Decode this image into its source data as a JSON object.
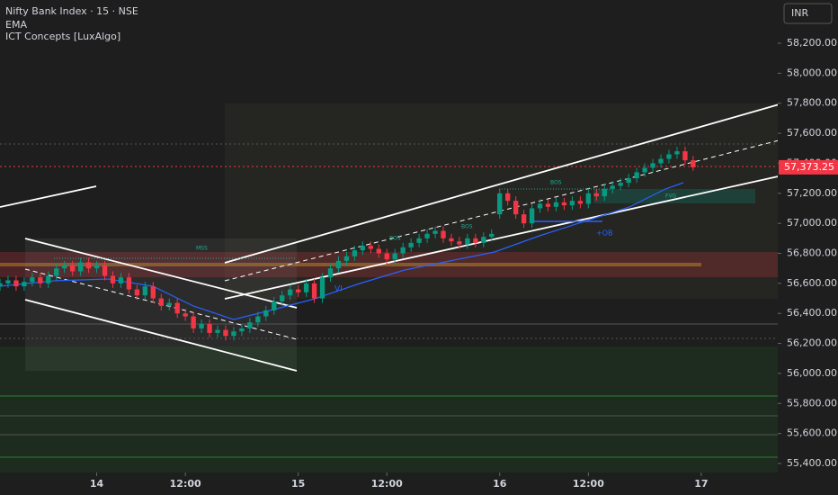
{
  "chart_data": {
    "type": "candlestick",
    "title": "Nifty Bank Index · 15 · NSE",
    "indicators": [
      "EMA",
      "ICT Concepts [LuxAlgo]"
    ],
    "currency": "INR",
    "up_color": "#089981",
    "down_color": "#f23645",
    "xlim": [
      0,
      96.5
    ],
    "ylim": [
      55340,
      58488
    ],
    "xticks": [
      {
        "value": 12,
        "label": "14"
      },
      {
        "value": 23,
        "label": "12:00"
      },
      {
        "value": 37,
        "label": "15"
      },
      {
        "value": 48,
        "label": "12:00"
      },
      {
        "value": 62,
        "label": "16"
      },
      {
        "value": 73,
        "label": "12:00"
      },
      {
        "value": 87,
        "label": "17"
      }
    ],
    "yticks": [
      {
        "value": 55400,
        "label": "55,400.00"
      },
      {
        "value": 55600,
        "label": "55,600.00"
      },
      {
        "value": 55800,
        "label": "55,800.00"
      },
      {
        "value": 56000,
        "label": "56,000.00"
      },
      {
        "value": 56200,
        "label": "56,200.00"
      },
      {
        "value": 56400,
        "label": "56,400.00"
      },
      {
        "value": 56600,
        "label": "56,600.00"
      },
      {
        "value": 56800,
        "label": "56,800.00"
      },
      {
        "value": 57000,
        "label": "57,000.00"
      },
      {
        "value": 57200,
        "label": "57,200.00"
      },
      {
        "value": 57400,
        "label": "57,400.00"
      },
      {
        "value": 57600,
        "label": "57,600.00"
      },
      {
        "value": 57800,
        "label": "57,800.00"
      },
      {
        "value": 58000,
        "label": "58,000.00"
      },
      {
        "value": 58200,
        "label": "58,200.00"
      }
    ],
    "last_price": {
      "value": 57373.25,
      "label": "57,373.25"
    },
    "annotations": [
      "MSS",
      "BOS",
      "BOS",
      "BOS",
      "+OB",
      "VI",
      "FVG"
    ],
    "candles": [
      [
        56580,
        56630,
        56550,
        56600
      ],
      [
        56600,
        56650,
        56570,
        56620
      ],
      [
        56620,
        56650,
        56550,
        56580
      ],
      [
        56580,
        56640,
        56550,
        56610
      ],
      [
        56610,
        56670,
        56580,
        56640
      ],
      [
        56640,
        56670,
        56570,
        56600
      ],
      [
        56600,
        56680,
        56570,
        56650
      ],
      [
        56650,
        56730,
        56620,
        56700
      ],
      [
        56700,
        56750,
        56670,
        56720
      ],
      [
        56720,
        56750,
        56650,
        56680
      ],
      [
        56680,
        56770,
        56650,
        56740
      ],
      [
        56740,
        56770,
        56670,
        56700
      ],
      [
        56700,
        56750,
        56670,
        56720
      ],
      [
        56720,
        56750,
        56620,
        56650
      ],
      [
        56650,
        56680,
        56570,
        56600
      ],
      [
        56600,
        56670,
        56570,
        56640
      ],
      [
        56640,
        56670,
        56530,
        56560
      ],
      [
        56560,
        56590,
        56490,
        56520
      ],
      [
        56520,
        56610,
        56490,
        56580
      ],
      [
        56580,
        56610,
        56470,
        56500
      ],
      [
        56500,
        56530,
        56420,
        56450
      ],
      [
        56450,
        56500,
        56420,
        56470
      ],
      [
        56470,
        56500,
        56370,
        56400
      ],
      [
        56400,
        56430,
        56350,
        56380
      ],
      [
        56380,
        56410,
        56270,
        56300
      ],
      [
        56300,
        56360,
        56270,
        56330
      ],
      [
        56330,
        56360,
        56240,
        56270
      ],
      [
        56270,
        56320,
        56240,
        56290
      ],
      [
        56290,
        56320,
        56220,
        56250
      ],
      [
        56250,
        56310,
        56220,
        56280
      ],
      [
        56280,
        56330,
        56250,
        56300
      ],
      [
        56300,
        56370,
        56270,
        56340
      ],
      [
        56340,
        56410,
        56310,
        56380
      ],
      [
        56380,
        56450,
        56350,
        56420
      ],
      [
        56420,
        56510,
        56390,
        56480
      ],
      [
        56480,
        56550,
        56450,
        56520
      ],
      [
        56520,
        56590,
        56490,
        56560
      ],
      [
        56560,
        56590,
        56510,
        56540
      ],
      [
        56540,
        56630,
        56510,
        56600
      ],
      [
        56600,
        56630,
        56470,
        56500
      ],
      [
        56500,
        56670,
        56470,
        56640
      ],
      [
        56640,
        56730,
        56610,
        56700
      ],
      [
        56700,
        56780,
        56670,
        56750
      ],
      [
        56750,
        56810,
        56720,
        56780
      ],
      [
        56780,
        56850,
        56750,
        56820
      ],
      [
        56820,
        56880,
        56790,
        56850
      ],
      [
        56850,
        56880,
        56800,
        56830
      ],
      [
        56830,
        56860,
        56770,
        56800
      ],
      [
        56800,
        56830,
        56730,
        56760
      ],
      [
        56760,
        56830,
        56730,
        56800
      ],
      [
        56800,
        56870,
        56770,
        56840
      ],
      [
        56840,
        56900,
        56810,
        56870
      ],
      [
        56870,
        56930,
        56840,
        56900
      ],
      [
        56900,
        56960,
        56870,
        56930
      ],
      [
        56930,
        56980,
        56900,
        56950
      ],
      [
        56950,
        56980,
        56870,
        56900
      ],
      [
        56900,
        56930,
        56850,
        56880
      ],
      [
        56880,
        56910,
        56830,
        56860
      ],
      [
        56860,
        56930,
        56830,
        56900
      ],
      [
        56900,
        56930,
        56840,
        56870
      ],
      [
        56870,
        56940,
        56840,
        56910
      ],
      [
        56910,
        56960,
        56880,
        56930
      ],
      [
        57060,
        57230,
        57030,
        57200
      ],
      [
        57200,
        57230,
        57120,
        57150
      ],
      [
        57150,
        57180,
        57030,
        57060
      ],
      [
        57060,
        57090,
        56970,
        57000
      ],
      [
        57000,
        57130,
        56970,
        57100
      ],
      [
        57100,
        57160,
        57070,
        57130
      ],
      [
        57130,
        57160,
        57080,
        57110
      ],
      [
        57110,
        57170,
        57080,
        57140
      ],
      [
        57140,
        57170,
        57090,
        57120
      ],
      [
        57120,
        57180,
        57090,
        57150
      ],
      [
        57150,
        57180,
        57100,
        57130
      ],
      [
        57130,
        57230,
        57100,
        57200
      ],
      [
        57200,
        57230,
        57150,
        57180
      ],
      [
        57180,
        57260,
        57150,
        57230
      ],
      [
        57230,
        57280,
        57200,
        57250
      ],
      [
        57250,
        57300,
        57220,
        57270
      ],
      [
        57270,
        57330,
        57240,
        57300
      ],
      [
        57300,
        57370,
        57270,
        57340
      ],
      [
        57340,
        57400,
        57310,
        57370
      ],
      [
        57370,
        57430,
        57340,
        57400
      ],
      [
        57400,
        57460,
        57370,
        57430
      ],
      [
        57430,
        57490,
        57400,
        57460
      ],
      [
        57460,
        57510,
        57430,
        57480
      ],
      [
        57480,
        57510,
        57390,
        57420
      ],
      [
        57420,
        57450,
        57350,
        57373.25
      ]
    ]
  }
}
